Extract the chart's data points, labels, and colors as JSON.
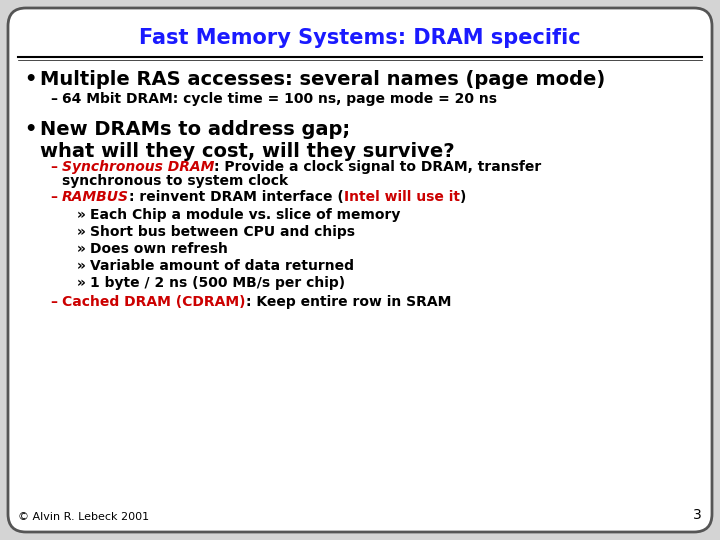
{
  "title": "Fast Memory Systems: DRAM specific",
  "title_color": "#1a1aff",
  "bg_color": "#FFFFFF",
  "outer_bg": "#d4d4d4",
  "border_color": "#555555",
  "footer": "© Alvin R. Lebeck 2001",
  "page_number": "3",
  "title_fontsize": 15,
  "footer_fontsize": 8,
  "page_num_fontsize": 10,
  "bullet1_fontsize": 14,
  "sub1_fontsize": 10,
  "bullet2_fontsize": 14,
  "dash_fontsize": 10,
  "sub2_fontsize": 10,
  "content": [
    {
      "type": "bullet",
      "text": "Multiple RAS accesses: several names (page mode)"
    },
    {
      "type": "sub1",
      "text": "64 Mbit DRAM: cycle time = 100 ns, page mode = 20 ns"
    },
    {
      "type": "bullet",
      "text": "New DRAMs to address gap;\nwhat will they cost, will they survive?"
    },
    {
      "type": "dash",
      "parts": [
        {
          "text": "Synchronous DRAM",
          "color": "#cc0000",
          "bold": true,
          "italic": true
        },
        {
          "text": ": Provide a clock signal to DRAM, transfer\nsynchronous to system clock",
          "color": "#000000",
          "bold": true,
          "italic": false
        }
      ]
    },
    {
      "type": "dash",
      "parts": [
        {
          "text": "RAMBUS",
          "color": "#cc0000",
          "bold": true,
          "italic": true
        },
        {
          "text": ": reinvent DRAM interface (",
          "color": "#000000",
          "bold": true,
          "italic": false
        },
        {
          "text": "Intel will use it",
          "color": "#cc0000",
          "bold": true,
          "italic": false
        },
        {
          "text": ")",
          "color": "#000000",
          "bold": true,
          "italic": false
        }
      ]
    },
    {
      "type": "sub2",
      "text": "Each Chip a module vs. slice of memory"
    },
    {
      "type": "sub2",
      "text": "Short bus between CPU and chips"
    },
    {
      "type": "sub2",
      "text": "Does own refresh"
    },
    {
      "type": "sub2",
      "text": "Variable amount of data returned"
    },
    {
      "type": "sub2",
      "text": "1 byte / 2 ns (500 MB/s per chip)"
    },
    {
      "type": "dash",
      "parts": [
        {
          "text": "Cached DRAM (CDRAM)",
          "color": "#cc0000",
          "bold": true,
          "italic": false
        },
        {
          "text": ": Keep entire row in SRAM",
          "color": "#000000",
          "bold": true,
          "italic": false
        }
      ]
    }
  ]
}
